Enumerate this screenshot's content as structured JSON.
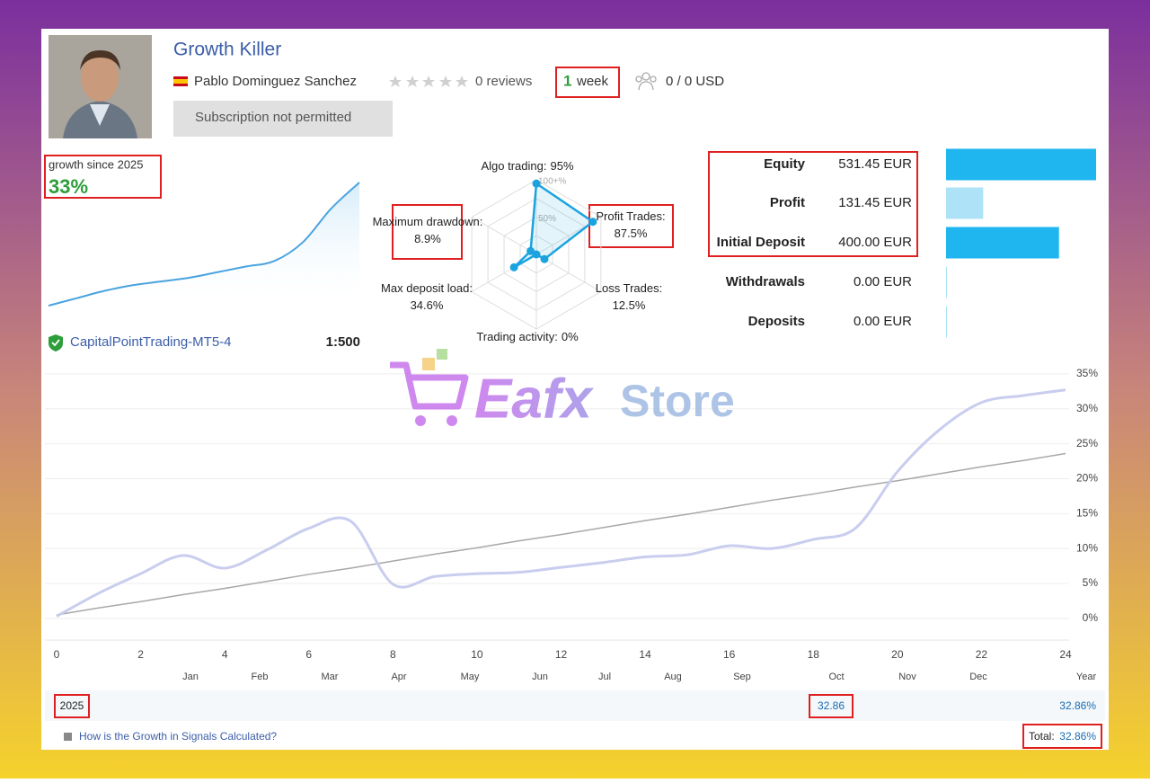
{
  "header": {
    "title": "Growth Killer",
    "author": "Pablo Dominguez Sanchez",
    "reviews": "0 reviews",
    "age_number": "1",
    "age_unit": "week",
    "subscribers": "0 / 0 USD",
    "subscribe_button": "Subscription not permitted"
  },
  "growth_summary": {
    "label": "growth since 2025",
    "value": "33%"
  },
  "account": {
    "broker": "CapitalPointTrading-MT5-4",
    "leverage": "1:500"
  },
  "watermark": {
    "part1": "Eafx",
    "part2": "Store"
  },
  "yearly": {
    "year": "2025",
    "month_value": "32.86",
    "year_value": "32.86%",
    "total_label": "Total:",
    "total_value": "32.86%"
  },
  "footer_link": "How is the Growth in Signals Calculated?",
  "chart_data": [
    {
      "type": "sparkline",
      "values": [
        0,
        2,
        4,
        5.5,
        6.5,
        7.5,
        9,
        10.5,
        12,
        17,
        26,
        33
      ],
      "color": "#4aa3df"
    },
    {
      "type": "radar",
      "categories": [
        "Algo trading:",
        "Profit Trades:",
        "Loss Trades:",
        "Trading activity:",
        "Max deposit load:",
        "Maximum drawdown:"
      ],
      "values": [
        95,
        87.5,
        12.5,
        0,
        34.6,
        8.9
      ],
      "value_labels": [
        "95%",
        "87.5%",
        "12.5%",
        "0%",
        "34.6%",
        "8.9%"
      ],
      "rlim": [
        0,
        100
      ],
      "rticks": [
        {
          "value": 50,
          "label": "50%"
        },
        {
          "value": 100,
          "label": "100+%"
        }
      ],
      "color": "#1ba3e0"
    },
    {
      "type": "hbar",
      "categories": [
        "Equity",
        "Profit",
        "Initial Deposit",
        "Withdrawals",
        "Deposits"
      ],
      "values": [
        531.45,
        131.45,
        400,
        0,
        0
      ],
      "value_labels": [
        "531.45 EUR",
        "131.45 EUR",
        "400.00 EUR",
        "0.00 EUR",
        "0.00 EUR"
      ],
      "colors": [
        "#1fb6f0",
        "#aee3f7",
        "#1fb6f0",
        "#aee3f7",
        "#aee3f7"
      ],
      "xlim": [
        0,
        531.45
      ]
    },
    {
      "type": "line",
      "x": [
        0,
        1,
        2,
        3,
        4,
        5,
        6,
        7,
        8,
        9,
        10,
        11,
        12,
        13,
        14,
        15,
        16,
        17,
        18,
        19,
        20,
        21,
        22,
        23,
        24
      ],
      "series": [
        {
          "color": "#c9cdee",
          "values": [
            0.3,
            3.6,
            6.4,
            9.0,
            7.2,
            9.8,
            12.9,
            13.9,
            4.9,
            6.0,
            6.4,
            6.6,
            7.3,
            8.0,
            8.8,
            9.1,
            10.4,
            10.0,
            11.3,
            12.9,
            21.0,
            27.0,
            30.9,
            31.9,
            32.7
          ]
        },
        {
          "color": "#a8a8a8",
          "values": [
            0.5,
            1.5,
            2.4,
            3.4,
            4.3,
            5.3,
            6.3,
            7.2,
            8.2,
            9.2,
            10.1,
            11.1,
            12.0,
            13.0,
            14.0,
            14.9,
            15.9,
            16.9,
            17.8,
            18.8,
            19.7,
            20.7,
            21.7,
            22.6,
            23.6
          ]
        }
      ],
      "xlim": [
        0,
        24
      ],
      "xticks": [
        0,
        2,
        4,
        6,
        8,
        10,
        12,
        14,
        16,
        18,
        20,
        22,
        24
      ],
      "ylim": [
        -3.1,
        36.4
      ],
      "yticks": [
        {
          "value": 0,
          "label": "0%"
        },
        {
          "value": 5,
          "label": "5%"
        },
        {
          "value": 10,
          "label": "10%"
        },
        {
          "value": 15,
          "label": "15%"
        },
        {
          "value": 20,
          "label": "20%"
        },
        {
          "value": 25,
          "label": "25%"
        },
        {
          "value": 30,
          "label": "30%"
        },
        {
          "value": 35,
          "label": "35%"
        }
      ],
      "grid": true,
      "month_labels": [
        "Jan",
        "Feb",
        "Mar",
        "Apr",
        "May",
        "Jun",
        "Jul",
        "Aug",
        "Sep",
        "Oct",
        "Nov",
        "Dec",
        "Year"
      ]
    }
  ]
}
